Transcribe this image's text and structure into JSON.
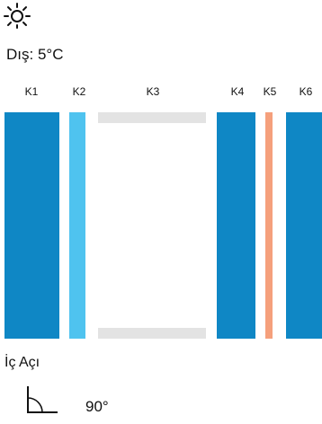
{
  "weather": {
    "icon": "sun-icon",
    "outside_label": "Dış: 5°C"
  },
  "layers": [
    {
      "label": "K1",
      "type": "glass",
      "color": "#0f87c5"
    },
    {
      "label": "K2",
      "type": "glass-thin",
      "color": "#4fc3ef"
    },
    {
      "label": "K3",
      "type": "cavity",
      "color": "#e3e3e3"
    },
    {
      "label": "K4",
      "type": "glass",
      "color": "#0f87c5"
    },
    {
      "label": "K5",
      "type": "spacer",
      "color": "#f5a07c"
    },
    {
      "label": "K6",
      "type": "glass",
      "color": "#0f87c5"
    }
  ],
  "inner_angle": {
    "label": "İç Açı",
    "icon": "angle-icon",
    "value": "90°"
  }
}
